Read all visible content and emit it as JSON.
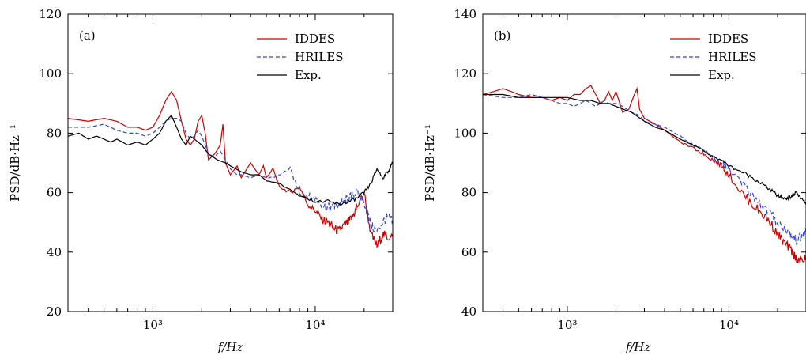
{
  "chart_data": [
    {
      "type": "line",
      "panel_label": "(a)",
      "xlabel": "f/Hz",
      "ylabel": "PSD/dB·Hz⁻¹",
      "xscale": "log",
      "xlim": [
        300,
        30000
      ],
      "ylim": [
        20,
        120
      ],
      "yticks": [
        "20",
        "40",
        "60",
        "80",
        "100",
        "120"
      ],
      "xticks": [
        {
          "value": 1000,
          "label": "10³"
        },
        {
          "value": 10000,
          "label": "10⁴"
        }
      ],
      "legend_position": "top-right",
      "grid": false,
      "series": [
        {
          "name": "IDDES",
          "color": "#cc0000",
          "dash": "solid",
          "x": [
            300,
            400,
            500,
            600,
            700,
            800,
            900,
            1000,
            1100,
            1200,
            1300,
            1400,
            1500,
            1600,
            1700,
            1800,
            1900,
            2000,
            2100,
            2200,
            2400,
            2600,
            2700,
            2800,
            3000,
            3300,
            3500,
            4000,
            4500,
            4800,
            5000,
            5500,
            6000,
            7000,
            8000,
            9000,
            10000,
            11000,
            12000,
            13000,
            14000,
            15000,
            16000,
            17000,
            18000,
            20000,
            22000,
            24000,
            26000,
            28000,
            30000
          ],
          "y": [
            85,
            84,
            85,
            84,
            82,
            82,
            81,
            82,
            86,
            91,
            94,
            91,
            84,
            78,
            76,
            78,
            84,
            86,
            80,
            71,
            73,
            76,
            83,
            70,
            66,
            69,
            65,
            70,
            66,
            69,
            65,
            68,
            62,
            60,
            62,
            56,
            54,
            51,
            50,
            48,
            47,
            49,
            50,
            52,
            55,
            60,
            46,
            42,
            46,
            45,
            45
          ]
        },
        {
          "name": "HRILES",
          "color": "#3344dd",
          "dash": "dashed",
          "x": [
            300,
            400,
            500,
            600,
            700,
            800,
            900,
            1000,
            1100,
            1200,
            1300,
            1400,
            1500,
            1600,
            1700,
            1800,
            1900,
            2000,
            2200,
            2400,
            2600,
            2800,
            3000,
            3300,
            3500,
            4000,
            4500,
            5000,
            5500,
            6000,
            7000,
            8000,
            9000,
            10000,
            11000,
            12000,
            13000,
            14000,
            15000,
            16000,
            17000,
            18000,
            20000,
            22000,
            24000,
            26000,
            28000,
            30000
          ],
          "y": [
            82,
            82,
            83,
            81,
            80,
            80,
            79,
            80,
            82,
            84,
            85,
            85,
            84,
            80,
            78,
            79,
            81,
            79,
            73,
            72,
            74,
            71,
            68,
            66,
            66,
            65,
            66,
            65,
            65,
            66,
            68,
            60,
            59,
            58,
            56,
            55,
            55,
            56,
            57,
            58,
            59,
            60,
            57,
            49,
            47,
            50,
            52,
            50
          ]
        },
        {
          "name": "Exp.",
          "color": "#000000",
          "dash": "solid",
          "x": [
            300,
            350,
            400,
            450,
            500,
            550,
            600,
            650,
            700,
            800,
            900,
            1000,
            1100,
            1200,
            1300,
            1400,
            1500,
            1600,
            1700,
            1800,
            2000,
            2200,
            2500,
            2800,
            3000,
            3500,
            4000,
            4500,
            5000,
            6000,
            7000,
            8000,
            9000,
            10000,
            12000,
            14000,
            16000,
            18000,
            20000,
            22000,
            24000,
            26000,
            28000,
            30000
          ],
          "y": [
            79,
            80,
            78,
            79,
            78,
            77,
            78,
            77,
            76,
            77,
            76,
            78,
            80,
            84,
            86,
            82,
            78,
            76,
            79,
            78,
            76,
            73,
            71,
            70,
            69,
            67,
            66,
            66,
            64,
            63,
            61,
            59,
            58,
            57,
            57,
            56,
            57,
            58,
            60,
            63,
            68,
            65,
            67,
            70
          ]
        }
      ]
    },
    {
      "type": "line",
      "panel_label": "(b)",
      "xlabel": "f/Hz",
      "ylabel": "PSD/dB·Hz⁻¹",
      "xscale": "log",
      "xlim": [
        300,
        30000
      ],
      "ylim": [
        40,
        140
      ],
      "yticks": [
        "40",
        "60",
        "80",
        "100",
        "120",
        "140"
      ],
      "xticks": [
        {
          "value": 1000,
          "label": "10³"
        },
        {
          "value": 10000,
          "label": "10⁴"
        }
      ],
      "legend_position": "top-right",
      "grid": false,
      "series": [
        {
          "name": "IDDES",
          "color": "#cc0000",
          "dash": "solid",
          "x": [
            300,
            350,
            400,
            450,
            500,
            600,
            700,
            800,
            900,
            1000,
            1100,
            1200,
            1300,
            1400,
            1500,
            1600,
            1700,
            1800,
            1900,
            2000,
            2200,
            2400,
            2600,
            2700,
            2800,
            3000,
            3500,
            4000,
            5000,
            6000,
            7000,
            8000,
            9000,
            10000,
            12000,
            14000,
            16000,
            18000,
            20000,
            22000,
            24000,
            26000,
            28000,
            30000
          ],
          "y": [
            113,
            114,
            115,
            114,
            113,
            112,
            112,
            111,
            112,
            111,
            113,
            113,
            115,
            116,
            113,
            110,
            111,
            114,
            111,
            114,
            107,
            108,
            113,
            115,
            108,
            105,
            103,
            101,
            97,
            95,
            93,
            91,
            89,
            86,
            80,
            76,
            73,
            70,
            66,
            63,
            61,
            58,
            57,
            58
          ]
        },
        {
          "name": "HRILES",
          "color": "#3344dd",
          "dash": "dashed",
          "x": [
            300,
            400,
            500,
            600,
            700,
            800,
            900,
            1000,
            1100,
            1200,
            1300,
            1400,
            1500,
            1600,
            1700,
            1800,
            2000,
            2200,
            2500,
            2800,
            3000,
            3500,
            4000,
            5000,
            6000,
            7000,
            8000,
            9000,
            10000,
            12000,
            14000,
            16000,
            18000,
            20000,
            22000,
            24000,
            26000,
            28000,
            30000
          ],
          "y": [
            113,
            112,
            112,
            113,
            112,
            111,
            110,
            110,
            109,
            110,
            111,
            110,
            109,
            110,
            111,
            110,
            110,
            109,
            107,
            106,
            104,
            103,
            102,
            99,
            96,
            94,
            92,
            90,
            88,
            83,
            79,
            76,
            73,
            70,
            68,
            66,
            64,
            65,
            67
          ]
        },
        {
          "name": "Exp.",
          "color": "#000000",
          "dash": "solid",
          "x": [
            300,
            400,
            500,
            600,
            700,
            800,
            900,
            1000,
            1200,
            1400,
            1600,
            1800,
            2000,
            2500,
            3000,
            3500,
            4000,
            5000,
            6000,
            7000,
            8000,
            9000,
            10000,
            12000,
            14000,
            16000,
            18000,
            20000,
            22000,
            24000,
            25000,
            26000,
            28000,
            30000
          ],
          "y": [
            113,
            113,
            112,
            112,
            112,
            112,
            112,
            112,
            111,
            111,
            110,
            110,
            109,
            107,
            104,
            102,
            101,
            98,
            96,
            94,
            92,
            91,
            89,
            87,
            85,
            83,
            81,
            79,
            78,
            78.5,
            79,
            80,
            78,
            76
          ]
        }
      ]
    }
  ]
}
